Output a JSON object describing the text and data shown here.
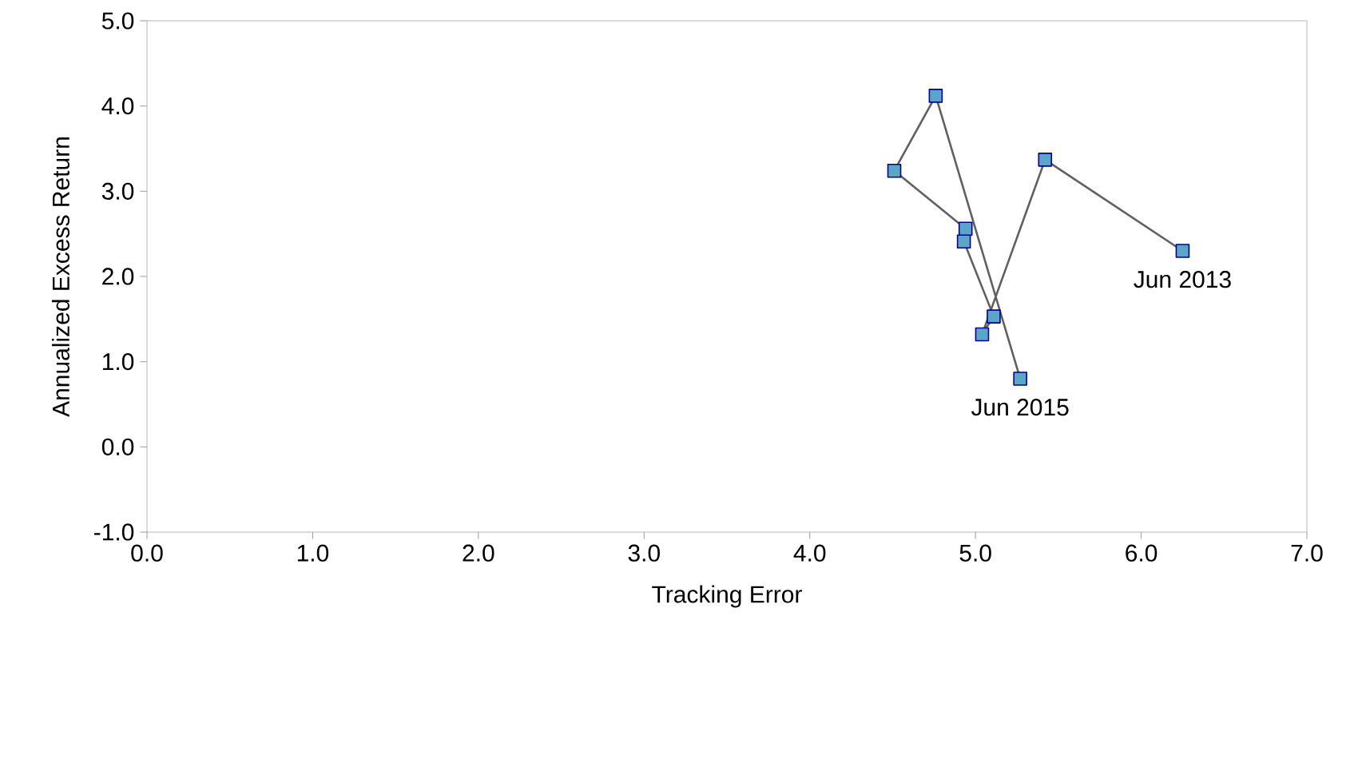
{
  "chart_data": {
    "type": "line",
    "xlabel": "Tracking Error",
    "ylabel": "Annualized Excess Return",
    "x": [
      6.25,
      5.42,
      5.04,
      5.11,
      4.93,
      4.94,
      4.51,
      4.76,
      5.27
    ],
    "series": [
      {
        "color": "#5aa5c8",
        "values": [
          2.3,
          3.37,
          1.32,
          1.53,
          2.41,
          2.56,
          3.24,
          4.12,
          0.8
        ]
      }
    ],
    "xlim": [
      0,
      7
    ],
    "ylim": [
      -1,
      5
    ],
    "xticks": [
      {
        "value": 0,
        "label": "0.0"
      },
      {
        "value": 1,
        "label": "1.0"
      },
      {
        "value": 2,
        "label": "2.0"
      },
      {
        "value": 3,
        "label": "3.0"
      },
      {
        "value": 4,
        "label": "4.0"
      },
      {
        "value": 5,
        "label": "5.0"
      },
      {
        "value": 6,
        "label": "6.0"
      },
      {
        "value": 7,
        "label": "7.0"
      }
    ],
    "yticks": [
      {
        "value": -1,
        "label": "-1.0"
      },
      {
        "value": 0,
        "label": "0.0"
      },
      {
        "value": 1,
        "label": "1.0"
      },
      {
        "value": 2,
        "label": "2.0"
      },
      {
        "value": 3,
        "label": "3.0"
      },
      {
        "value": 4,
        "label": "4.0"
      },
      {
        "value": 5,
        "label": "5.0"
      }
    ],
    "annotations": [
      {
        "text": "Jun 2013",
        "x": 6.25,
        "y": 2.3
      },
      {
        "text": "Jun 2015",
        "x": 5.27,
        "y": 0.8
      }
    ],
    "marker": "square",
    "line_style": "solid",
    "grid": false
  }
}
